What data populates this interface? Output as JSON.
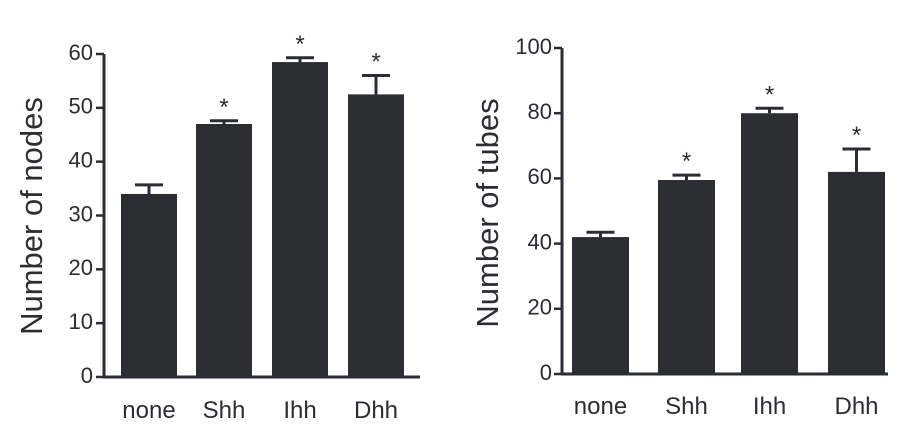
{
  "chart_data": [
    {
      "type": "bar",
      "categories": [
        "none",
        "Shh",
        "Ihh",
        "Dhh"
      ],
      "values": [
        34,
        47,
        58.5,
        52.5
      ],
      "errors": [
        1.7,
        0.6,
        0.8,
        3.5
      ],
      "significance": [
        "",
        "*",
        "*",
        "*"
      ],
      "xlabel": "",
      "ylabel": "Number of nodes",
      "ylim": [
        0,
        60
      ],
      "yticks": [
        0,
        10,
        20,
        30,
        40,
        50,
        60
      ],
      "grid": false,
      "bar_color": "#2b2d33"
    },
    {
      "type": "bar",
      "categories": [
        "none",
        "Shh",
        "Ihh",
        "Dhh"
      ],
      "values": [
        42,
        59.5,
        80,
        62
      ],
      "errors": [
        1.5,
        1.5,
        1.5,
        7
      ],
      "significance": [
        "",
        "*",
        "*",
        "*"
      ],
      "xlabel": "",
      "ylabel": "Number of tubes",
      "ylim": [
        0,
        100
      ],
      "yticks": [
        0,
        20,
        40,
        60,
        80,
        100
      ],
      "grid": false,
      "bar_color": "#2b2d33"
    }
  ]
}
